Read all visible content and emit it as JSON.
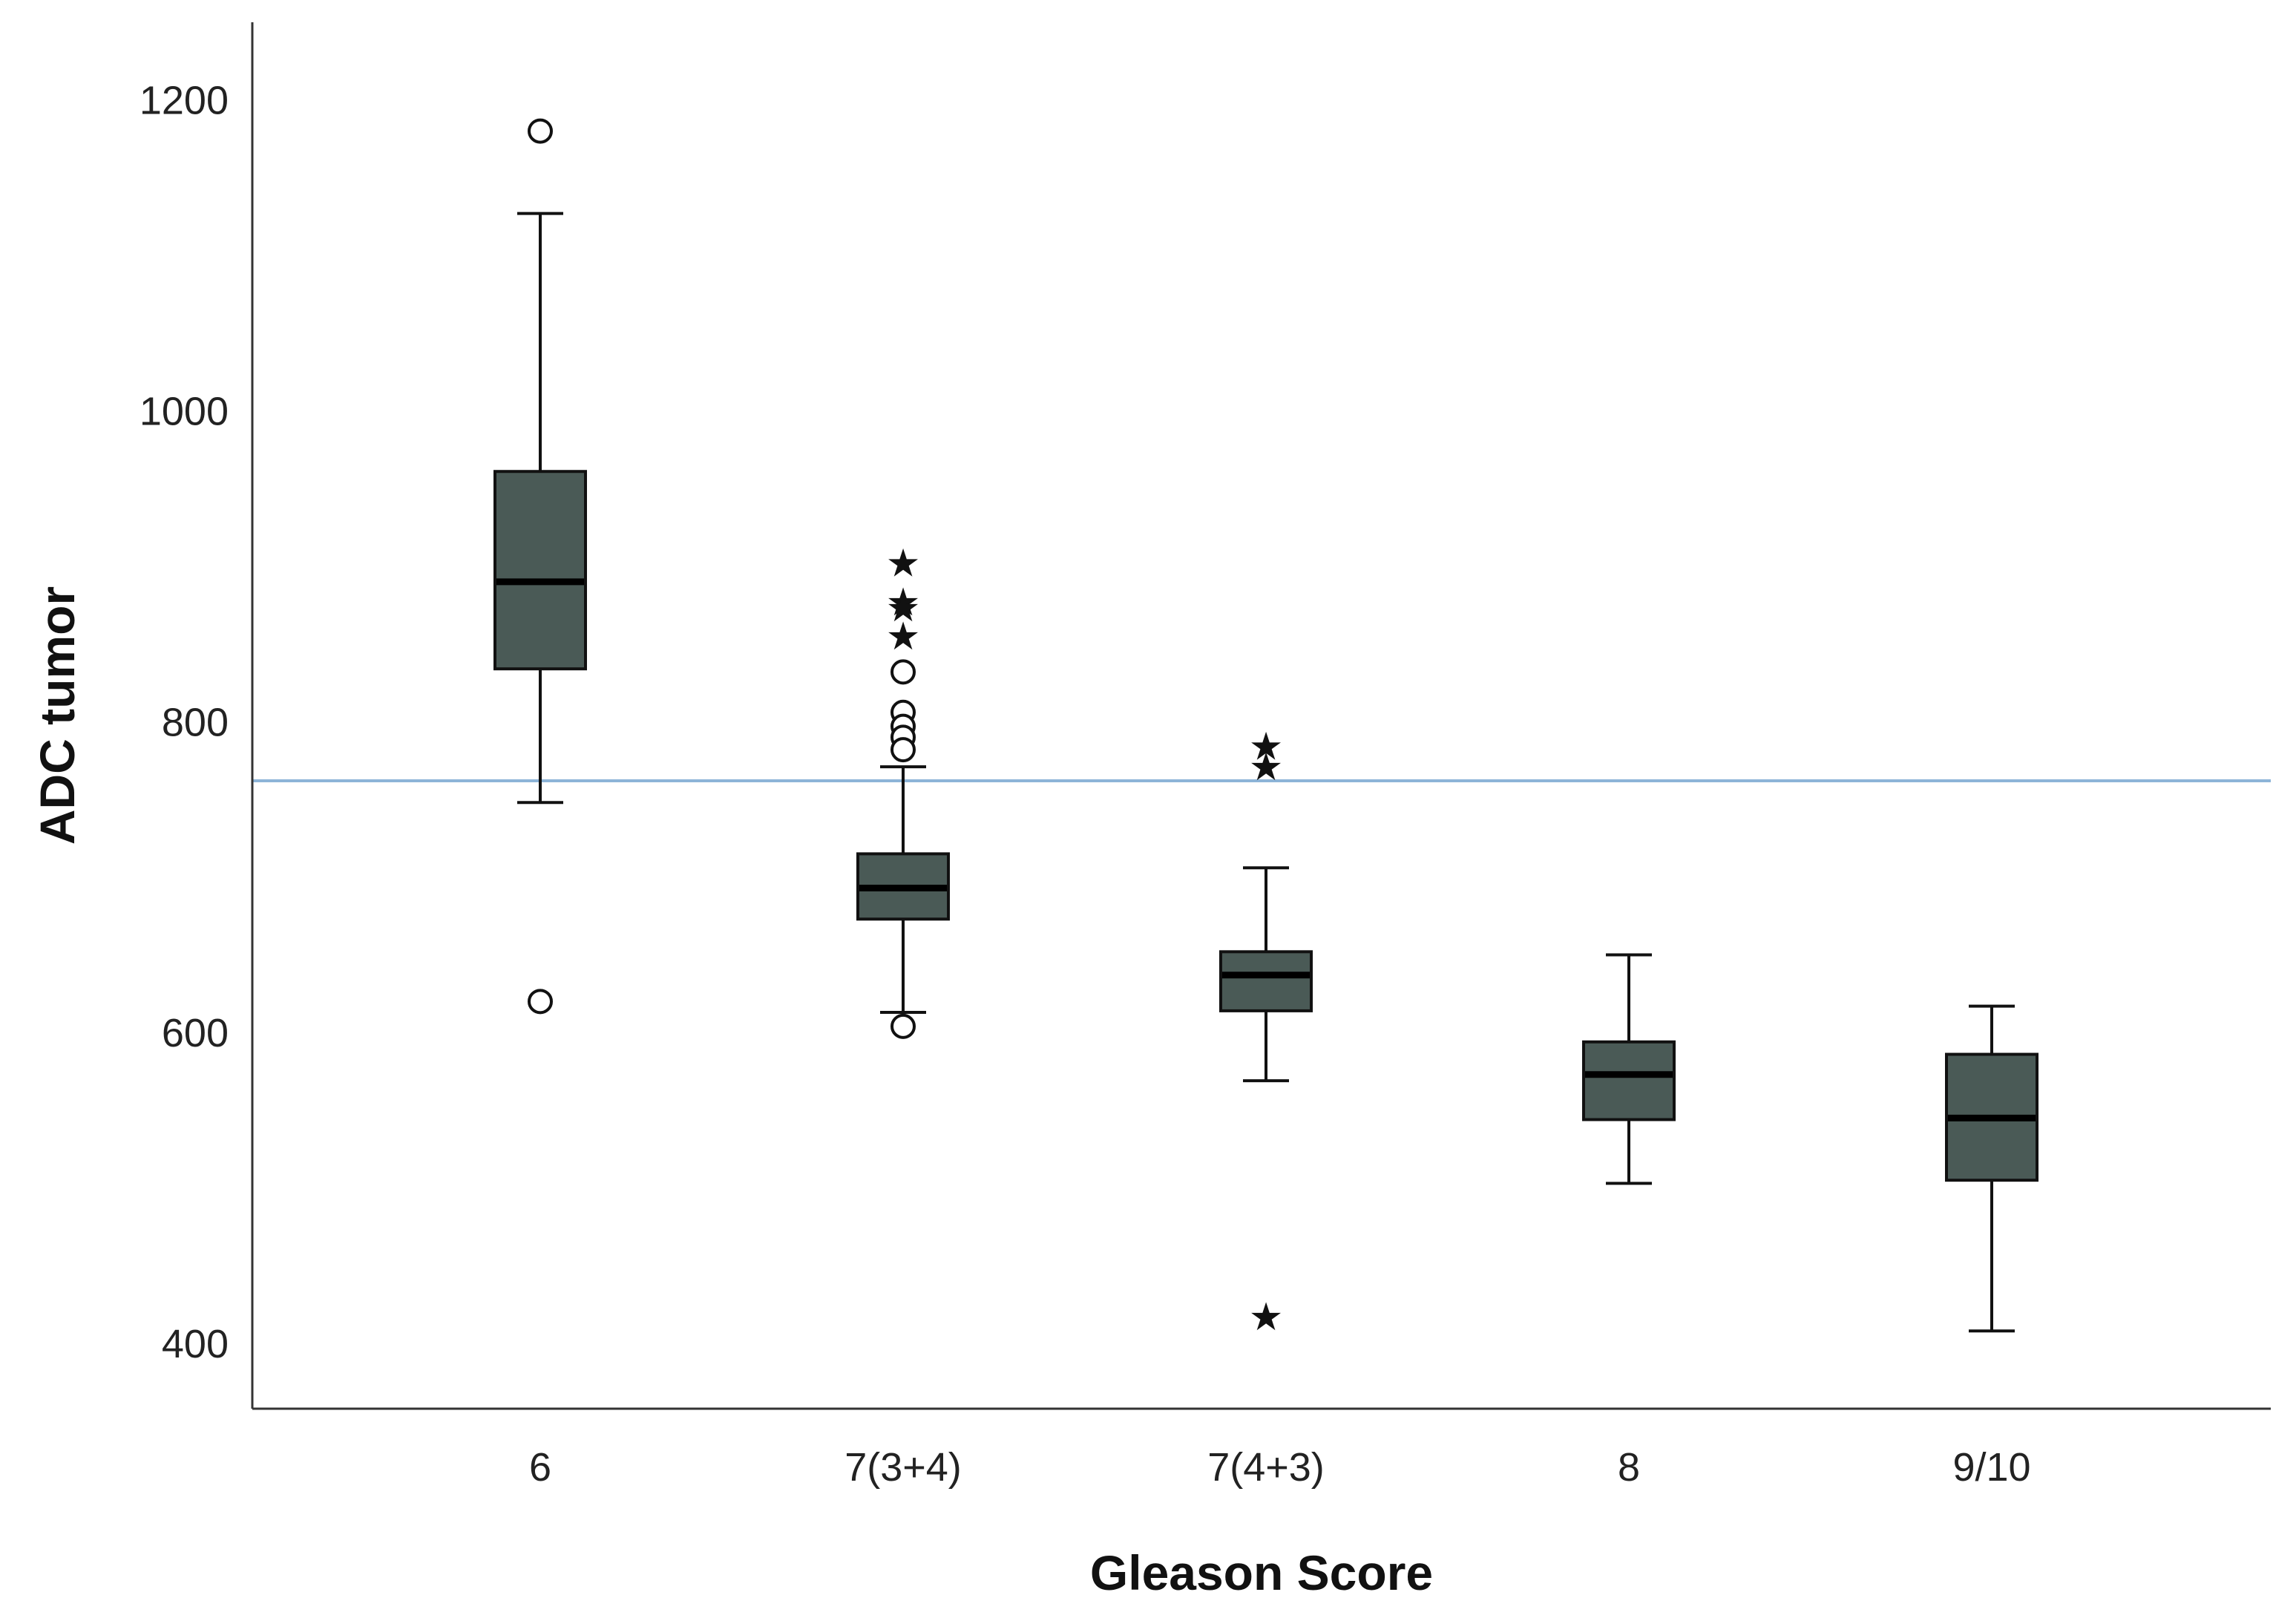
{
  "chart_data": {
    "type": "boxplot",
    "title": "",
    "xlabel": "Gleason Score",
    "ylabel": "ADC tumor",
    "ylim": [
      358,
      1250
    ],
    "yticks": [
      400,
      600,
      800,
      1000,
      1200
    ],
    "grid": false,
    "categories": [
      "6",
      "7(3+4)",
      "7(4+3)",
      "8",
      "9/10"
    ],
    "boxes": [
      {
        "category": "6",
        "whisker_low": 748,
        "q1": 834,
        "median": 890,
        "q3": 961,
        "whisker_high": 1127,
        "outliers": [
          1180,
          620
        ],
        "extremes": []
      },
      {
        "category": "7(3+4)",
        "whisker_low": 613,
        "q1": 673,
        "median": 693,
        "q3": 715,
        "whisker_high": 771,
        "outliers": [
          832,
          806,
          797,
          790,
          782,
          604
        ],
        "extremes": [
          905,
          880,
          876,
          858
        ]
      },
      {
        "category": "7(4+3)",
        "whisker_low": 569,
        "q1": 614,
        "median": 637,
        "q3": 652,
        "whisker_high": 706,
        "outliers": [],
        "extremes": [
          787,
          774,
          420
        ]
      },
      {
        "category": "8",
        "whisker_low": 503,
        "q1": 544,
        "median": 573,
        "q3": 594,
        "whisker_high": 650,
        "outliers": [],
        "extremes": []
      },
      {
        "category": "9/10",
        "whisker_low": 408,
        "q1": 505,
        "median": 545,
        "q3": 586,
        "whisker_high": 617,
        "outliers": [],
        "extremes": []
      }
    ],
    "reference_line": {
      "y": 762,
      "color": "#8db4d8"
    },
    "colors": {
      "box_fill": "#4a5a56",
      "stroke": "#111111"
    }
  }
}
